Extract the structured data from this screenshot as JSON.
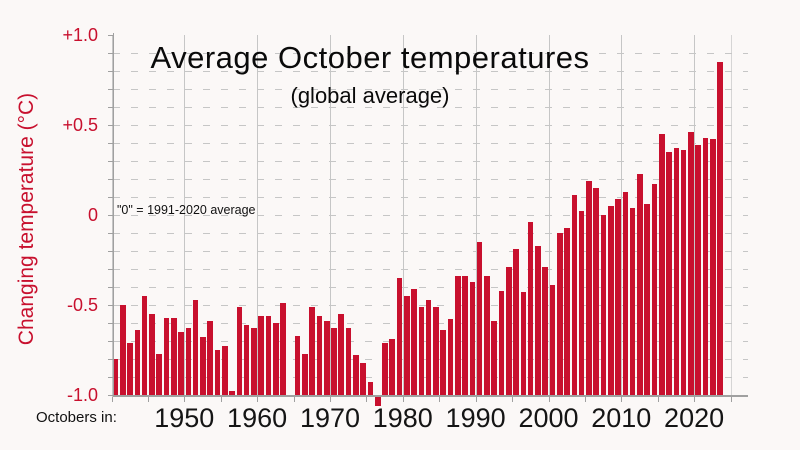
{
  "title": "Average October temperatures",
  "subtitle": "(global average)",
  "annotation": "\"0\" = 1991-2020 average",
  "x_axis": {
    "prefix_label": "Octobers in:",
    "tick_labels": [
      "1950",
      "1960",
      "1970",
      "1980",
      "1990",
      "2000",
      "2010",
      "2020"
    ]
  },
  "y_axis": {
    "title": "Changing temperature (°C)",
    "tick_labels": [
      "+1.0",
      "+0.5",
      "0",
      "-0.5",
      "-1.0"
    ],
    "tick_values": [
      1.0,
      0.5,
      0,
      -0.5,
      -1.0
    ]
  },
  "colors": {
    "bar": "#c8102e",
    "accent_text": "#c8102e",
    "grid": "#c6c6c6",
    "axis": "#a0a0a0",
    "background": "#fbf8f7"
  },
  "chart_data": {
    "type": "bar",
    "title": "Average October temperatures",
    "subtitle": "(global average)",
    "xlabel": "Octobers in:",
    "ylabel": "Changing temperature (°C)",
    "baseline_note": "\"0\" = 1991-2020 average",
    "ylim": [
      -1.0,
      1.0
    ],
    "grid": "dashed horizontal every 0.1, solid vertical每 decade",
    "bar_anchor": -1.0,
    "years": [
      1940,
      1941,
      1942,
      1943,
      1944,
      1945,
      1946,
      1947,
      1948,
      1949,
      1950,
      1951,
      1952,
      1953,
      1954,
      1955,
      1956,
      1957,
      1958,
      1959,
      1960,
      1961,
      1962,
      1963,
      1964,
      1965,
      1966,
      1967,
      1968,
      1969,
      1970,
      1971,
      1972,
      1973,
      1974,
      1975,
      1976,
      1977,
      1978,
      1979,
      1980,
      1981,
      1982,
      1983,
      1984,
      1985,
      1986,
      1987,
      1988,
      1989,
      1990,
      1991,
      1992,
      1993,
      1994,
      1995,
      1996,
      1997,
      1998,
      1999,
      2000,
      2001,
      2002,
      2003,
      2004,
      2005,
      2006,
      2007,
      2008,
      2009,
      2010,
      2011,
      2012,
      2013,
      2014,
      2015,
      2016,
      2017,
      2018,
      2019,
      2020,
      2021,
      2022,
      2023
    ],
    "values": [
      -0.8,
      -0.5,
      -0.71,
      -0.64,
      -0.45,
      -0.55,
      -0.77,
      -0.57,
      -0.57,
      -0.65,
      -0.63,
      -0.47,
      -0.68,
      -0.59,
      -0.75,
      -0.73,
      -0.98,
      -0.51,
      -0.61,
      -0.63,
      -0.56,
      -0.56,
      -0.6,
      -0.49,
      -1.0,
      -0.67,
      -0.77,
      -0.51,
      -0.56,
      -0.59,
      -0.63,
      -0.55,
      -0.63,
      -0.78,
      -0.82,
      -0.93,
      -1.06,
      -0.71,
      -0.69,
      -0.35,
      -0.45,
      -0.41,
      -0.51,
      -0.47,
      -0.51,
      -0.64,
      -0.58,
      -0.34,
      -0.34,
      -0.37,
      -0.15,
      -0.34,
      -0.59,
      -0.42,
      -0.29,
      -0.19,
      -0.43,
      -0.04,
      -0.17,
      -0.29,
      -0.39,
      -0.1,
      -0.07,
      0.11,
      0.02,
      0.19,
      0.15,
      0.0,
      0.05,
      0.09,
      0.13,
      0.04,
      0.23,
      0.06,
      0.17,
      0.45,
      0.35,
      0.37,
      0.36,
      0.46,
      0.39,
      0.43,
      0.42,
      0.85
    ]
  }
}
